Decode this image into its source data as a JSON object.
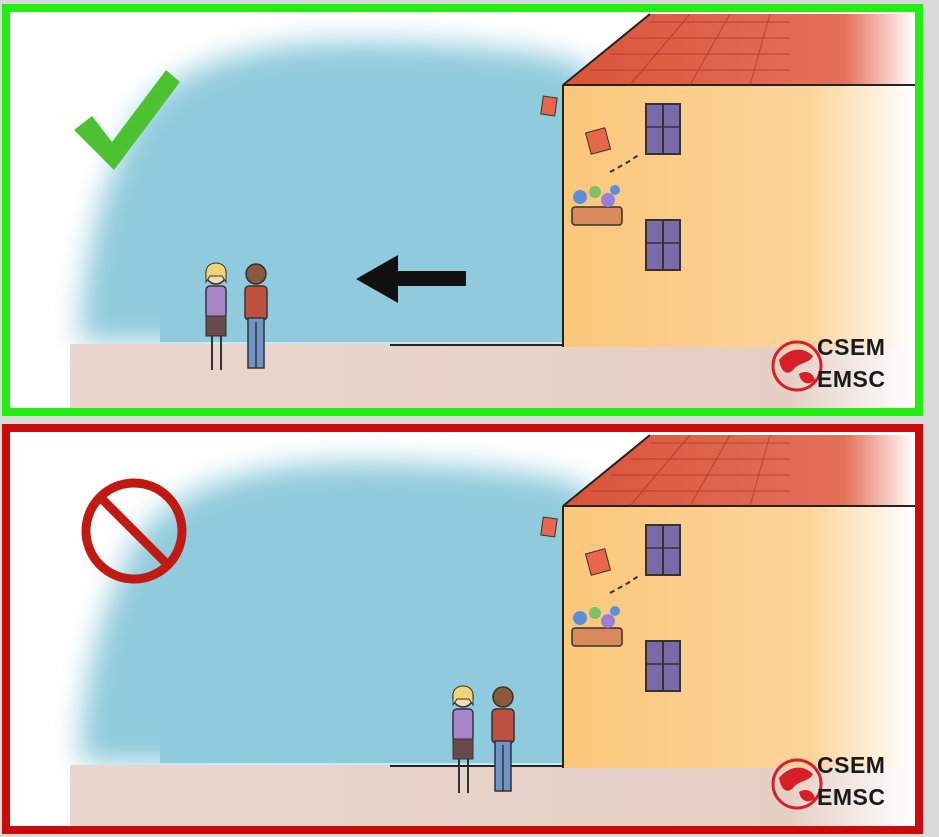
{
  "panels": [
    {
      "status": "correct",
      "border_color": "#22ee11",
      "badge_icon": "checkmark-icon",
      "arrow_icon": "left-arrow-icon",
      "logo": {
        "line1": "CSEM",
        "line2": "EMSC"
      }
    },
    {
      "status": "incorrect",
      "border_color": "#cc0a0a",
      "badge_icon": "prohibited-icon",
      "logo": {
        "line1": "CSEM",
        "line2": "EMSC"
      }
    }
  ],
  "colors": {
    "sky": "#8fcbdc",
    "ground": "#e6cfc6",
    "wall": "#fbc77a",
    "roof": "#d9533a",
    "window": "#7b6aa8",
    "logo_red": "#d61f26"
  }
}
